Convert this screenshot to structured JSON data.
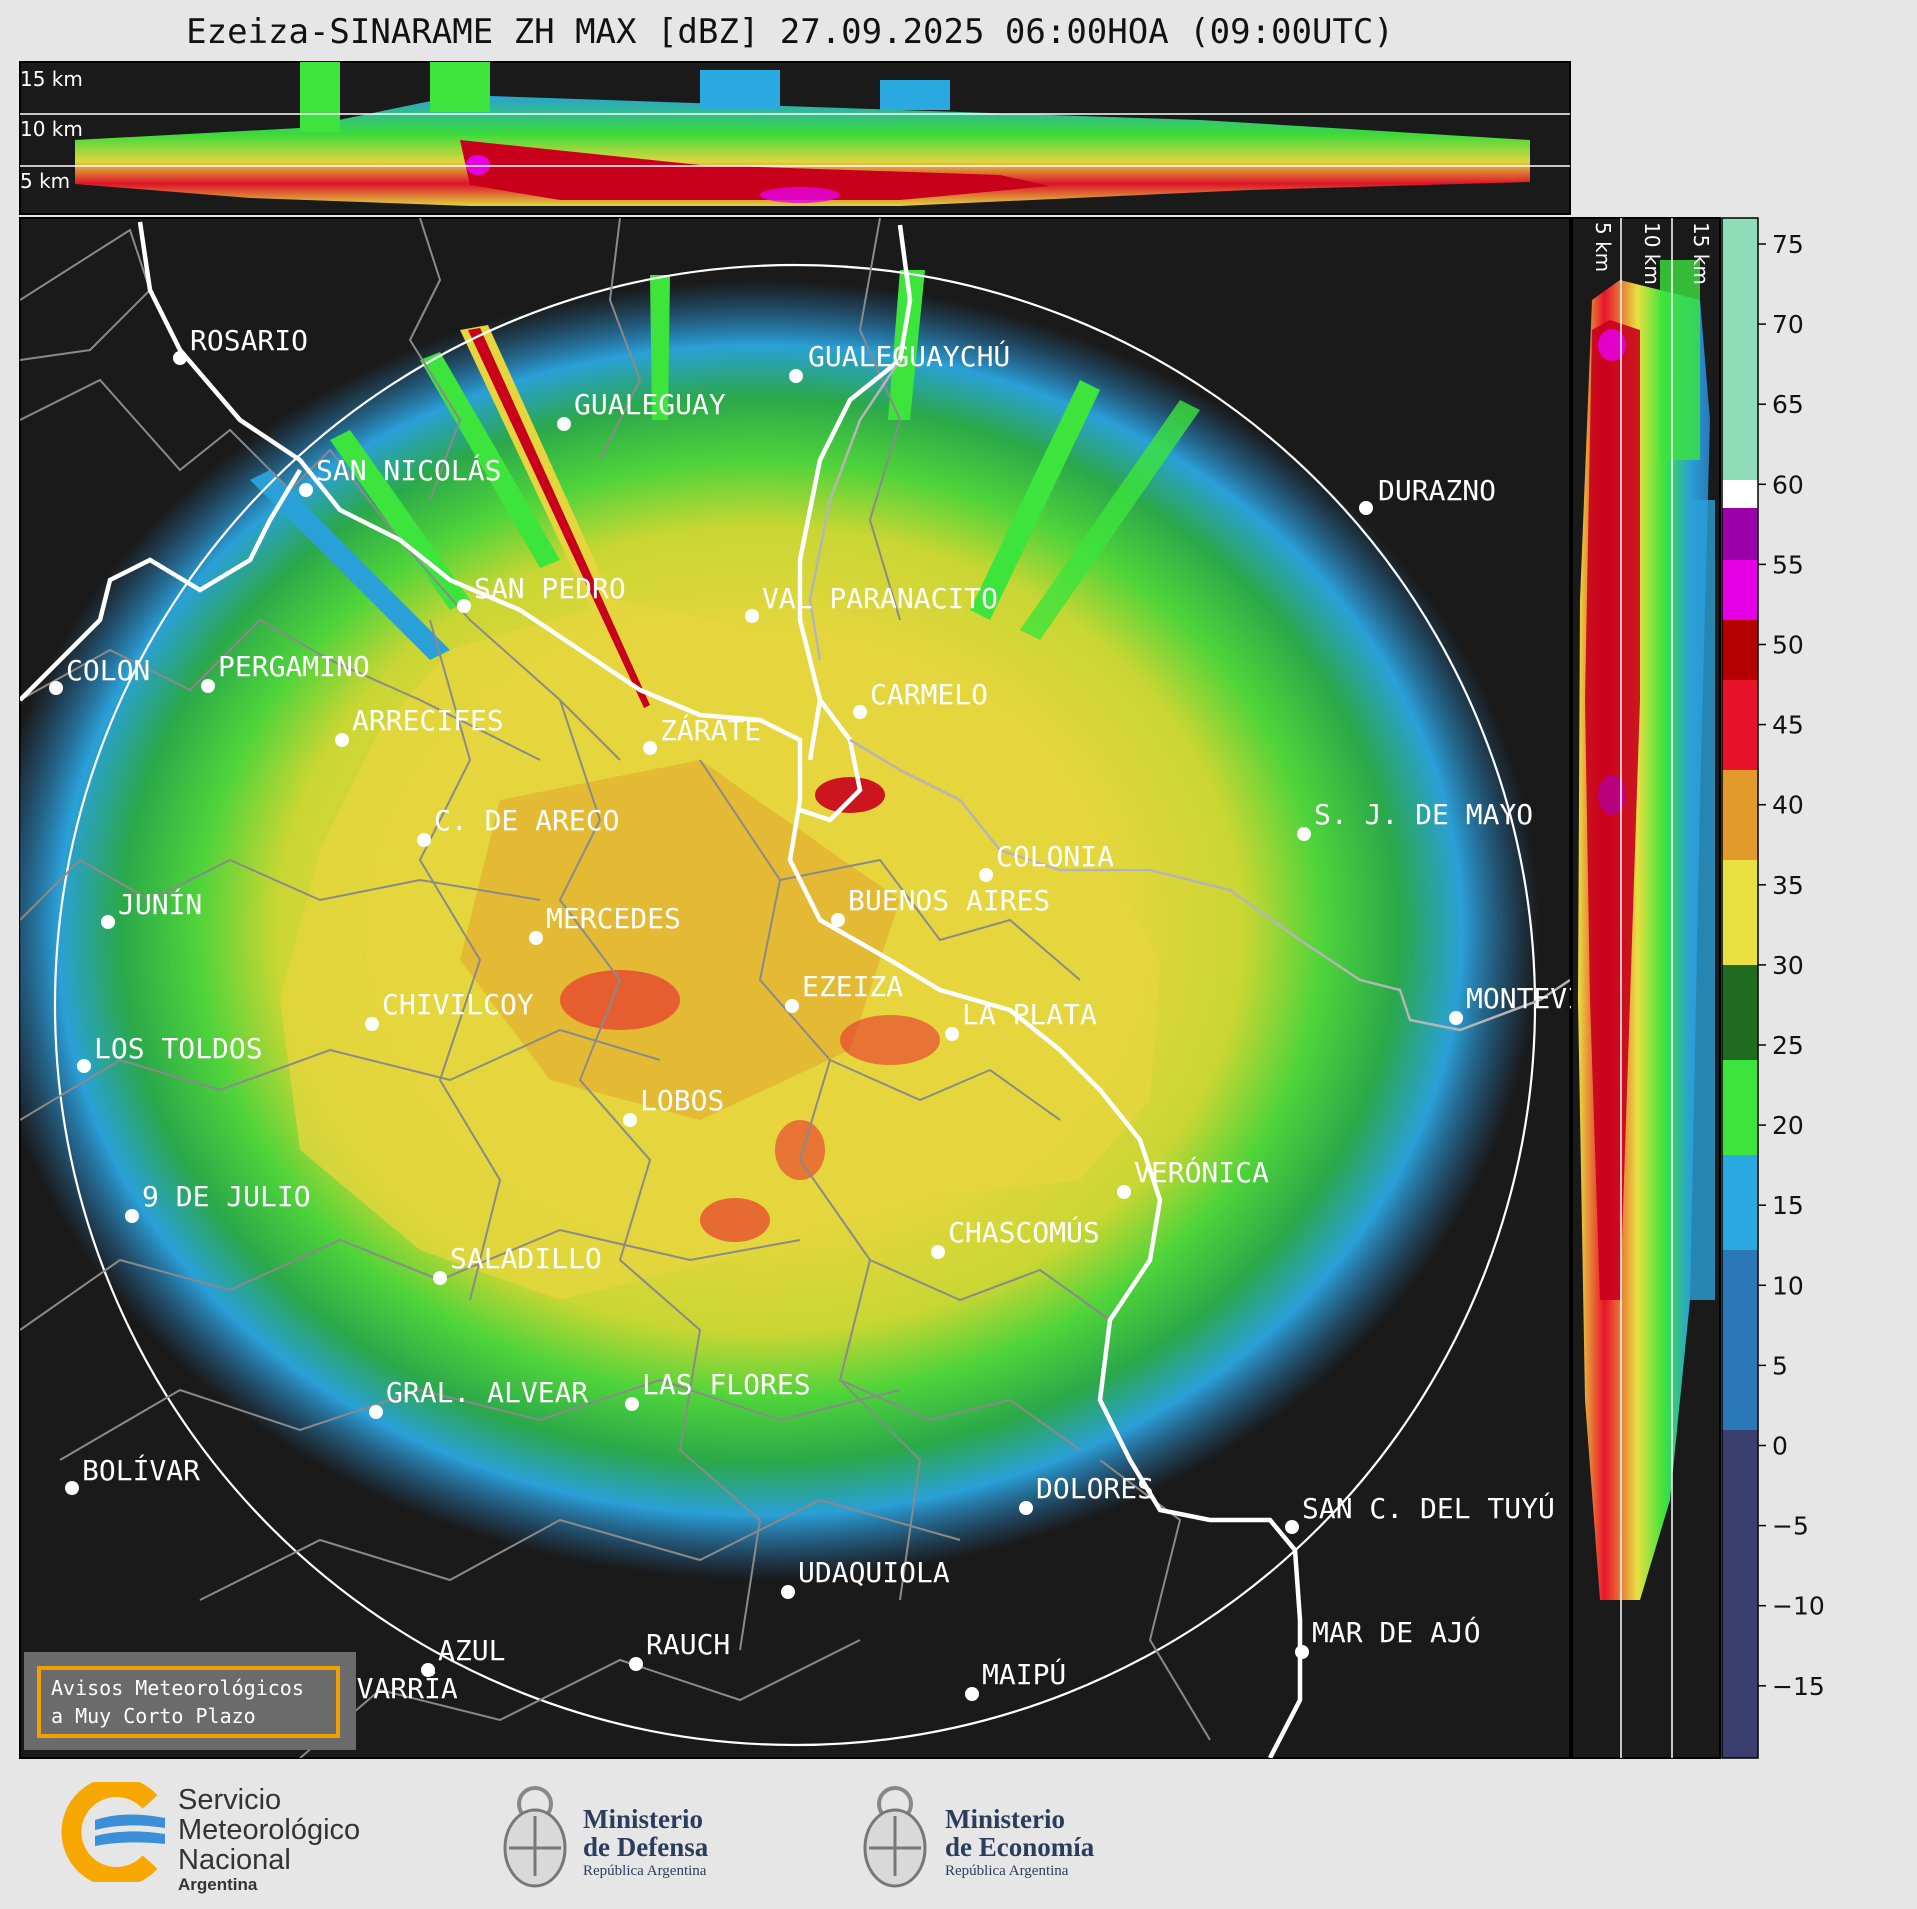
{
  "title": "Ezeiza-SINARAME ZH MAX [dBZ] 27.09.2025 06:00HOA (09:00UTC)",
  "altitude_labels_top": [
    "15 km",
    "10 km",
    "5 km"
  ],
  "altitude_labels_side": [
    "5 km",
    "10 km",
    "15 km"
  ],
  "colorbar": {
    "ticks": [
      "75",
      "70",
      "65",
      "60",
      "55",
      "50",
      "45",
      "40",
      "35",
      "30",
      "25",
      "20",
      "15",
      "10",
      "5",
      "0",
      "−5",
      "−10",
      "−15"
    ],
    "colors": {
      "light_green": "#8fdcb8",
      "white": "#ffffff",
      "purple": "#9b00a8",
      "magenta": "#e600e6",
      "dark_red": "#b40000",
      "red": "#e8132b",
      "orange": "#e29a2a",
      "yellow": "#e8e040",
      "dark_green": "#1f6b1f",
      "green": "#3ce43c",
      "cyan": "#2aa8e0",
      "blue": "#2a78b8",
      "navy": "#3a3f70"
    }
  },
  "cities": [
    {
      "name": "ROSARIO"
    },
    {
      "name": "GUALEGUAYCHÚ"
    },
    {
      "name": "GUALEGUAY"
    },
    {
      "name": "SAN NICOLÁS"
    },
    {
      "name": "DURAZNO"
    },
    {
      "name": "SAN PEDRO"
    },
    {
      "name": "VAL PARANACITO"
    },
    {
      "name": "COLON"
    },
    {
      "name": "PERGAMINO"
    },
    {
      "name": "CARMELO"
    },
    {
      "name": "ARRECIFES"
    },
    {
      "name": "ZÁRATE"
    },
    {
      "name": "C. DE ARECO"
    },
    {
      "name": "S. J. DE MAYO"
    },
    {
      "name": "COLONIA"
    },
    {
      "name": "JUNÍN"
    },
    {
      "name": "MERCEDES"
    },
    {
      "name": "BUENOS AIRES"
    },
    {
      "name": "EZEIZA"
    },
    {
      "name": "MONTEVIDEO"
    },
    {
      "name": "CHIVILCOY"
    },
    {
      "name": "LA PLATA"
    },
    {
      "name": "LOS TOLDOS"
    },
    {
      "name": "LOBOS"
    },
    {
      "name": "VERÓNICA"
    },
    {
      "name": "9 DE JULIO"
    },
    {
      "name": "CHASCOMÚS"
    },
    {
      "name": "SALADILLO"
    },
    {
      "name": "GRAL. ALVEAR"
    },
    {
      "name": "LAS FLORES"
    },
    {
      "name": "BOLÍVAR"
    },
    {
      "name": "DOLORES"
    },
    {
      "name": "SAN C. DEL TUYÚ"
    },
    {
      "name": "UDAQUIOLA"
    },
    {
      "name": "MAR DE AJÓ"
    },
    {
      "name": "AZUL"
    },
    {
      "name": "RAUCH"
    },
    {
      "name": "OLAVARRÍA"
    },
    {
      "name": "MAIPÚ"
    }
  ],
  "aviso": {
    "line1": "Avisos Meteorológicos",
    "line2": "a Muy Corto Plazo"
  },
  "footer": {
    "smn": {
      "line1": "Servicio",
      "line2": "Meteorológico",
      "line3": "Nacional",
      "line4": "Argentina"
    },
    "defensa": {
      "line1": "Ministerio",
      "line2": "de Defensa",
      "line3": "República Argentina"
    },
    "economia": {
      "line1": "Ministerio",
      "line2": "de Economía",
      "line3": "República Argentina"
    }
  }
}
